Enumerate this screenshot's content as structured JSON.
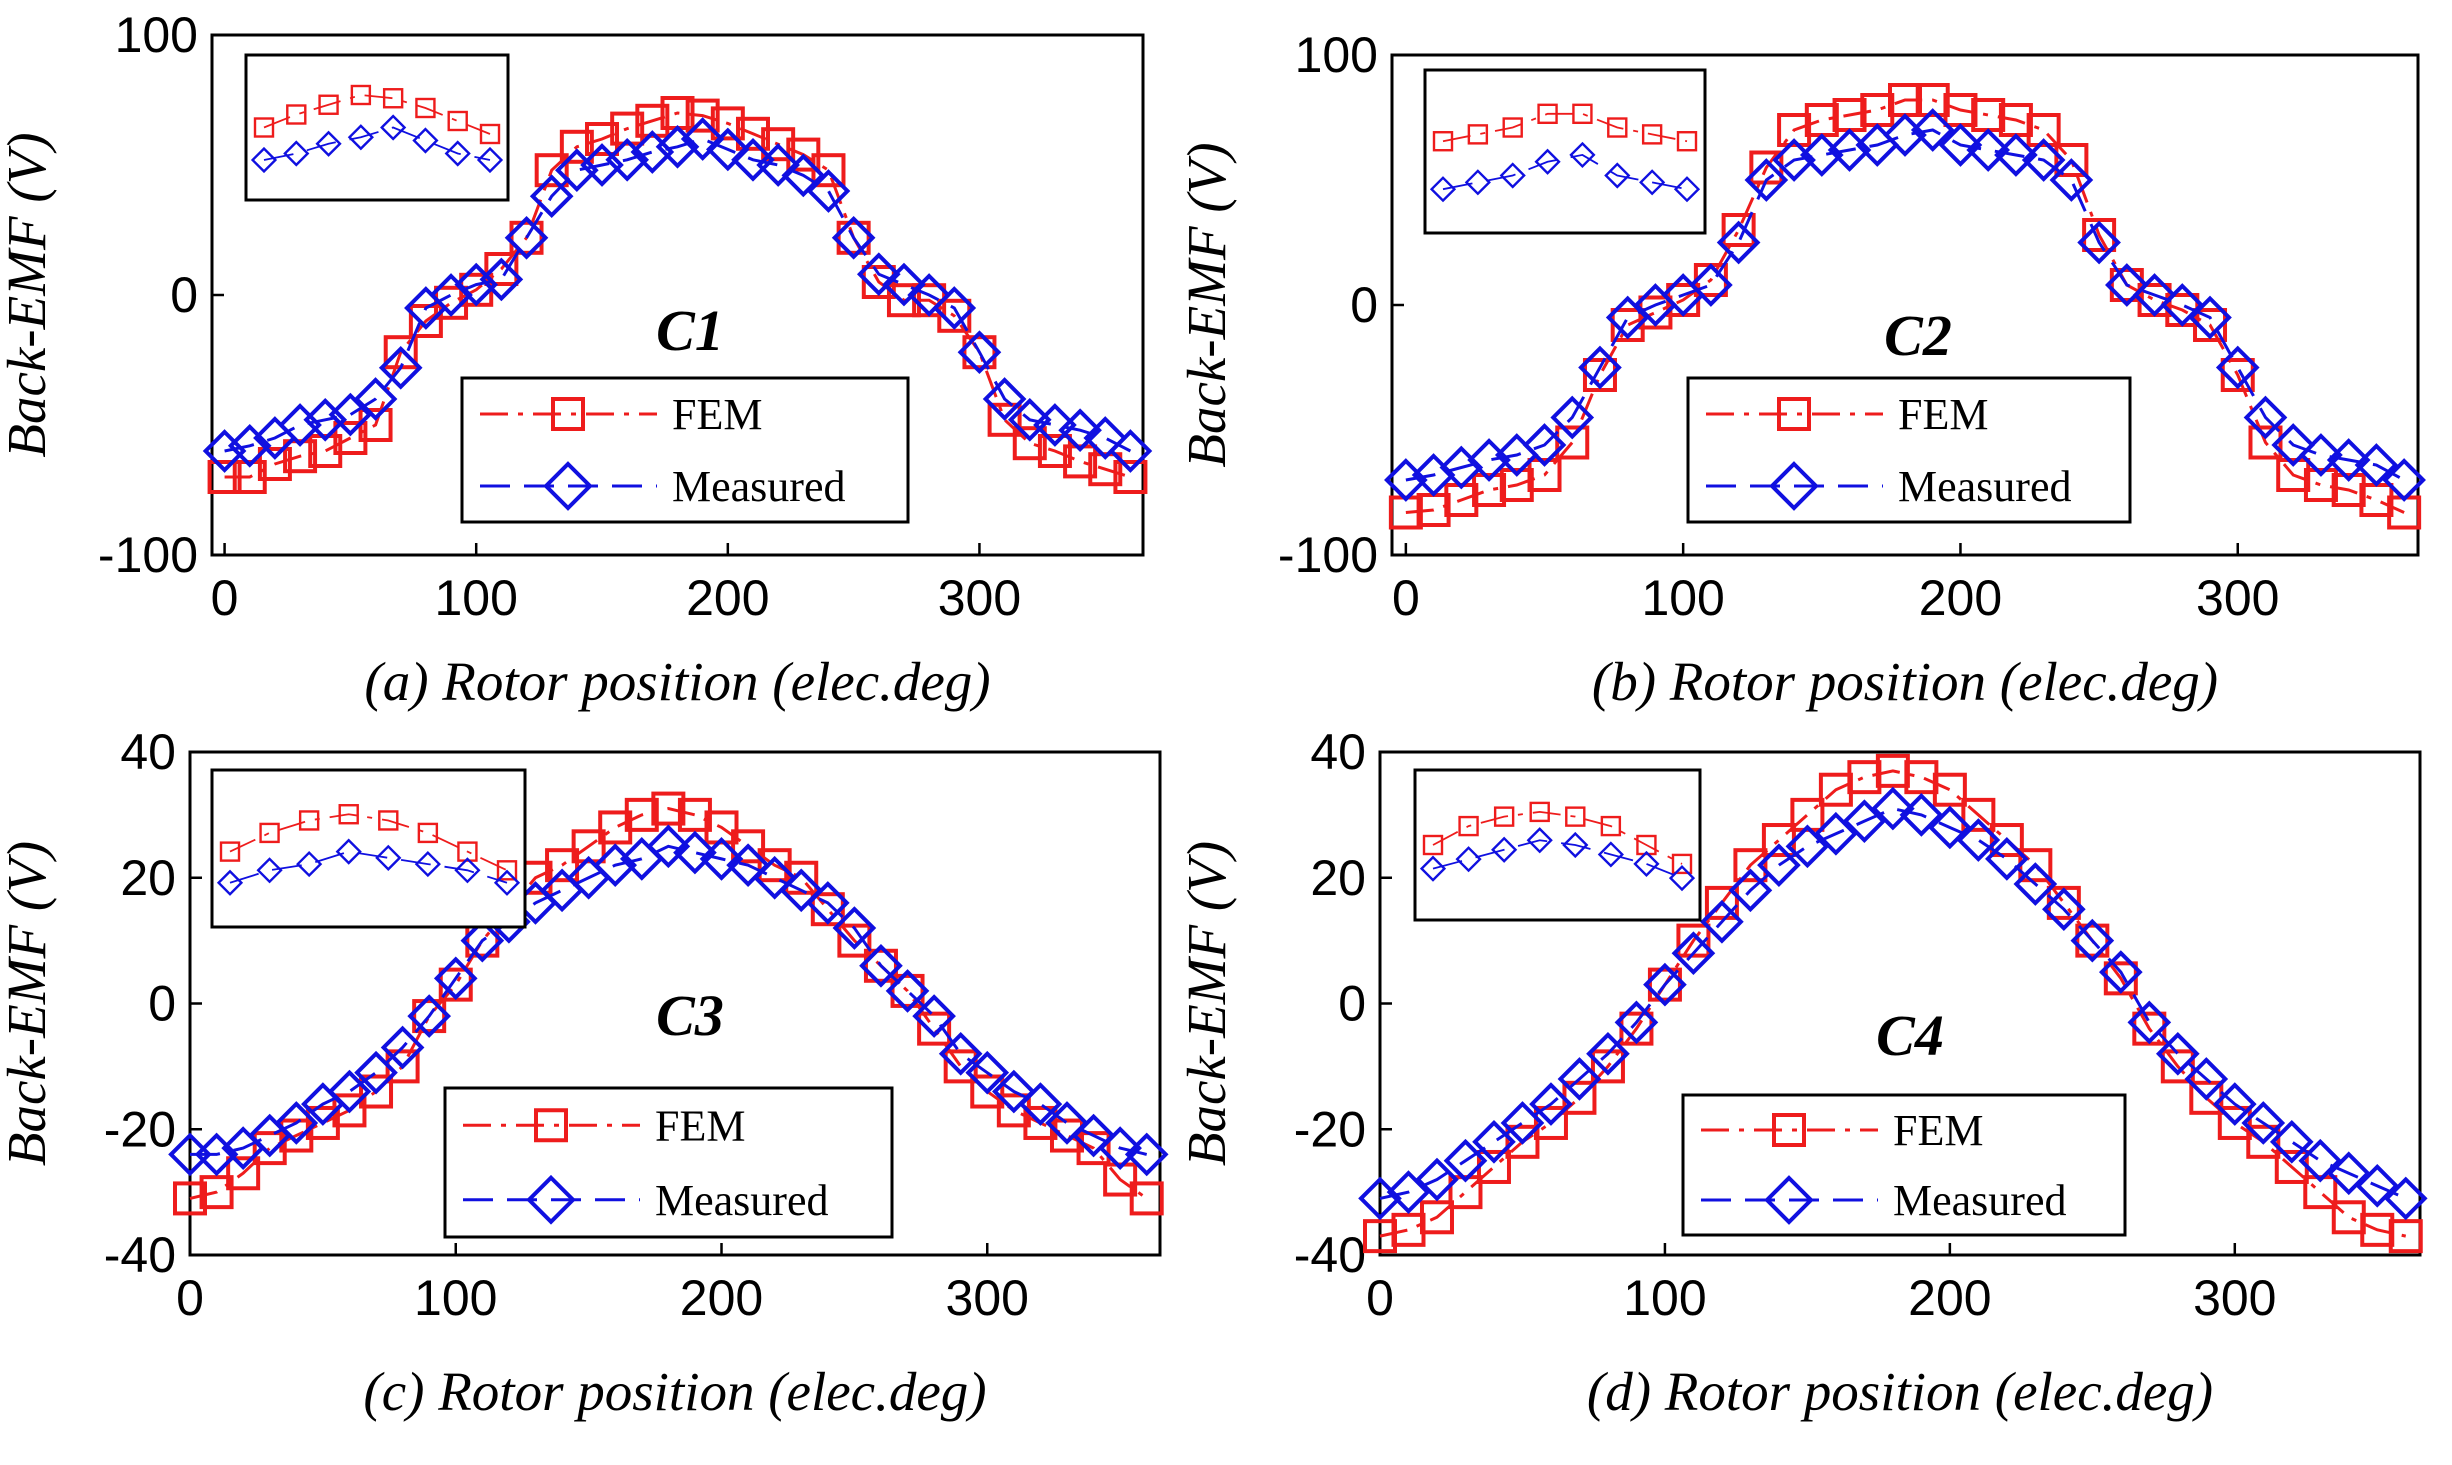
{
  "figure": {
    "common_ylabel": "Back-EMF (V)",
    "series_colors": {
      "FEM": "#ee1c1c",
      "Measured": "#1010e0"
    }
  },
  "chart_data": [
    {
      "type": "line",
      "panel": "a",
      "title": "C1",
      "xlabel": "(a) Rotor position (elec.deg)",
      "ylabel": "Back-EMF (V)",
      "xlim": [
        -5,
        365
      ],
      "ylim": [
        -100,
        100
      ],
      "xticks": [
        0,
        100,
        200,
        300
      ],
      "yticks": [
        -100,
        0,
        100
      ],
      "legend": {
        "position": "lower-right",
        "entries": [
          "FEM",
          "Measured"
        ]
      },
      "x": [
        0,
        10,
        20,
        30,
        40,
        50,
        60,
        70,
        80,
        90,
        100,
        110,
        120,
        130,
        140,
        150,
        160,
        170,
        180,
        190,
        200,
        210,
        220,
        230,
        240,
        250,
        260,
        270,
        280,
        290,
        300,
        310,
        320,
        330,
        340,
        350,
        360
      ],
      "series": [
        {
          "name": "FEM",
          "marker": "square",
          "line": "dash-dot",
          "color": "#ee1c1c",
          "values": [
            -70,
            -70,
            -65,
            -62,
            -60,
            -55,
            -50,
            -22,
            -10,
            -3,
            2,
            10,
            22,
            48,
            57,
            60,
            64,
            67,
            70,
            69,
            66,
            62,
            58,
            54,
            48,
            22,
            5,
            -2,
            -2,
            -8,
            -22,
            -48,
            -57,
            -60,
            -64,
            -67,
            -70
          ]
        },
        {
          "name": "Measured",
          "marker": "diamond",
          "line": "dash",
          "color": "#1010e0",
          "values": [
            -60,
            -58,
            -55,
            -50,
            -48,
            -46,
            -40,
            -28,
            -5,
            0,
            4,
            6,
            22,
            38,
            48,
            50,
            52,
            55,
            57,
            60,
            56,
            52,
            50,
            46,
            40,
            22,
            8,
            4,
            0,
            -5,
            -22,
            -40,
            -48,
            -50,
            -52,
            -55,
            -60
          ]
        }
      ]
    },
    {
      "type": "line",
      "panel": "b",
      "title": "C2",
      "xlabel": "(b) Rotor position (elec.deg)",
      "ylabel": "Back-EMF (V)",
      "xlim": [
        -5,
        365
      ],
      "ylim": [
        -100,
        100
      ],
      "xticks": [
        0,
        100,
        200,
        300
      ],
      "yticks": [
        -100,
        0,
        100
      ],
      "legend": {
        "position": "lower-right",
        "entries": [
          "FEM",
          "Measured"
        ]
      },
      "x": [
        0,
        10,
        20,
        30,
        40,
        50,
        60,
        70,
        80,
        90,
        100,
        110,
        120,
        130,
        140,
        150,
        160,
        170,
        180,
        190,
        200,
        210,
        220,
        230,
        240,
        250,
        260,
        270,
        280,
        290,
        300,
        310,
        320,
        330,
        340,
        350,
        360
      ],
      "series": [
        {
          "name": "FEM",
          "marker": "square",
          "line": "dash-dot",
          "color": "#ee1c1c",
          "values": [
            -83,
            -82,
            -78,
            -74,
            -72,
            -68,
            -55,
            -28,
            -8,
            -3,
            2,
            10,
            30,
            55,
            70,
            74,
            76,
            78,
            82,
            82,
            78,
            76,
            74,
            70,
            58,
            28,
            8,
            2,
            -2,
            -8,
            -28,
            -55,
            -68,
            -72,
            -74,
            -78,
            -83
          ]
        },
        {
          "name": "Measured",
          "marker": "diamond",
          "line": "dash",
          "color": "#1010e0",
          "values": [
            -70,
            -68,
            -65,
            -62,
            -60,
            -56,
            -45,
            -25,
            -5,
            0,
            4,
            8,
            25,
            50,
            58,
            60,
            62,
            64,
            68,
            70,
            64,
            62,
            60,
            58,
            50,
            25,
            8,
            4,
            0,
            -5,
            -25,
            -45,
            -56,
            -60,
            -62,
            -64,
            -70
          ]
        }
      ]
    },
    {
      "type": "line",
      "panel": "c",
      "title": "C3",
      "xlabel": "(c) Rotor position (elec.deg)",
      "ylabel": "Back-EMF (V)",
      "xlim": [
        0,
        365
      ],
      "ylim": [
        -40,
        40
      ],
      "xticks": [
        0,
        100,
        200,
        300
      ],
      "yticks": [
        -40,
        -20,
        0,
        20,
        40
      ],
      "legend": {
        "position": "lower-center",
        "entries": [
          "FEM",
          "Measured"
        ]
      },
      "x": [
        0,
        10,
        20,
        30,
        40,
        50,
        60,
        70,
        80,
        90,
        100,
        110,
        120,
        130,
        140,
        150,
        160,
        170,
        180,
        190,
        200,
        210,
        220,
        230,
        240,
        250,
        260,
        270,
        280,
        290,
        300,
        310,
        320,
        330,
        340,
        350,
        360
      ],
      "series": [
        {
          "name": "FEM",
          "marker": "square",
          "line": "dash-dot",
          "color": "#ee1c1c",
          "values": [
            -31,
            -30,
            -27,
            -23,
            -21,
            -19,
            -17,
            -14,
            -10,
            -2,
            3,
            10,
            15,
            20,
            22,
            25,
            28,
            30,
            31,
            30,
            28,
            25,
            22,
            20,
            15,
            10,
            6,
            2,
            -4,
            -10,
            -14,
            -17,
            -19,
            -21,
            -23,
            -28,
            -31
          ]
        },
        {
          "name": "Measured",
          "marker": "diamond",
          "line": "dash",
          "color": "#1010e0",
          "values": [
            -24,
            -24,
            -23,
            -21,
            -19,
            -16,
            -14,
            -11,
            -7,
            -2,
            4,
            10,
            13,
            16,
            18,
            20,
            22,
            23,
            25,
            24,
            23,
            22,
            20,
            18,
            16,
            12,
            6,
            2,
            -2,
            -8,
            -11,
            -14,
            -16,
            -19,
            -21,
            -23,
            -24
          ]
        }
      ]
    },
    {
      "type": "line",
      "panel": "d",
      "title": "C4",
      "xlabel": "(d) Rotor position (elec.deg)",
      "ylabel": "Back-EMF (V)",
      "xlim": [
        0,
        365
      ],
      "ylim": [
        -40,
        40
      ],
      "xticks": [
        0,
        100,
        200,
        300
      ],
      "yticks": [
        -40,
        -20,
        0,
        20,
        40
      ],
      "legend": {
        "position": "lower-right",
        "entries": [
          "FEM",
          "Measured"
        ]
      },
      "x": [
        0,
        10,
        20,
        30,
        40,
        50,
        60,
        70,
        80,
        90,
        100,
        110,
        120,
        130,
        140,
        150,
        160,
        170,
        180,
        190,
        200,
        210,
        220,
        230,
        240,
        250,
        260,
        270,
        280,
        290,
        300,
        310,
        320,
        330,
        340,
        350,
        360
      ],
      "series": [
        {
          "name": "FEM",
          "marker": "square",
          "line": "dash-dot",
          "color": "#ee1c1c",
          "values": [
            -37,
            -36,
            -34,
            -30,
            -26,
            -22,
            -19,
            -15,
            -10,
            -4,
            3,
            10,
            16,
            22,
            26,
            30,
            34,
            36,
            37,
            36,
            34,
            30,
            26,
            22,
            16,
            10,
            4,
            -4,
            -10,
            -15,
            -19,
            -22,
            -26,
            -30,
            -34,
            -36,
            -37
          ]
        },
        {
          "name": "Measured",
          "marker": "diamond",
          "line": "dash",
          "color": "#1010e0",
          "values": [
            -31,
            -30,
            -28,
            -25,
            -22,
            -19,
            -16,
            -12,
            -8,
            -3,
            3,
            8,
            13,
            18,
            22,
            25,
            27,
            29,
            31,
            30,
            28,
            26,
            23,
            19,
            15,
            10,
            5,
            -3,
            -8,
            -12,
            -16,
            -19,
            -22,
            -25,
            -27,
            -29,
            -31
          ]
        }
      ]
    }
  ]
}
